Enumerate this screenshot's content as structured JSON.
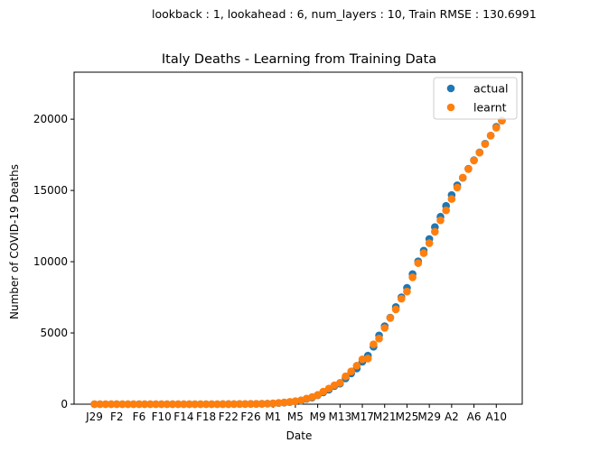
{
  "suptitle": "lookback : 1, lookahead : 6, num_layers : 10, Train RMSE : 130.6991",
  "chart_data": {
    "type": "scatter",
    "title": "Italy Deaths - Learning from Training Data",
    "xlabel": "Date",
    "ylabel": "Number of COVID-19 Deaths",
    "ylim": [
      0,
      23300
    ],
    "yticks": [
      0,
      5000,
      10000,
      15000,
      20000
    ],
    "xtick_labels": [
      "J29",
      "F2",
      "F6",
      "F10",
      "F14",
      "F18",
      "F22",
      "F26",
      "M1",
      "M5",
      "M9",
      "M13",
      "M17",
      "M21",
      "M25",
      "M29",
      "A2",
      "A6",
      "A10"
    ],
    "x_days_from_J29": [
      0,
      1,
      2,
      3,
      4,
      5,
      6,
      7,
      8,
      9,
      10,
      11,
      12,
      13,
      14,
      15,
      16,
      17,
      18,
      19,
      20,
      21,
      22,
      23,
      24,
      25,
      26,
      27,
      28,
      29,
      30,
      31,
      32,
      33,
      34,
      35,
      36,
      37,
      38,
      39,
      40,
      41,
      42,
      43,
      44,
      45,
      46,
      47,
      48,
      49,
      50,
      51,
      52,
      53,
      54,
      55,
      56,
      57,
      58,
      59,
      60,
      61,
      62,
      63,
      64,
      65,
      66,
      67,
      68,
      69,
      70,
      71,
      72,
      73
    ],
    "legend": {
      "position": "top-right",
      "entries": [
        "actual",
        "learnt"
      ]
    },
    "series": [
      {
        "name": "actual",
        "color": "#1f77b4",
        "values": [
          0,
          0,
          0,
          0,
          0,
          0,
          0,
          0,
          0,
          0,
          0,
          0,
          0,
          0,
          0,
          0,
          0,
          0,
          0,
          0,
          0,
          0,
          0,
          1,
          3,
          7,
          10,
          12,
          17,
          21,
          29,
          34,
          52,
          79,
          107,
          148,
          197,
          233,
          366,
          463,
          631,
          827,
          1016,
          1266,
          1441,
          1809,
          2158,
          2503,
          2978,
          3405,
          4032,
          4825,
          5476,
          6077,
          6820,
          7503,
          8165,
          9134,
          10023,
          10779,
          11591,
          12428,
          13155,
          13915,
          14681,
          15362,
          15887,
          16523,
          17127,
          17669,
          18279,
          18849,
          19468,
          19899
        ]
      },
      {
        "name": "learnt",
        "color": "#ff7f0e",
        "values": [
          0,
          0,
          0,
          0,
          0,
          0,
          0,
          0,
          0,
          0,
          0,
          0,
          0,
          0,
          0,
          0,
          0,
          0,
          0,
          0,
          0,
          0,
          0,
          2,
          4,
          8,
          11,
          14,
          18,
          22,
          30,
          40,
          60,
          90,
          120,
          160,
          210,
          270,
          390,
          500,
          650,
          880,
          1100,
          1330,
          1500,
          1950,
          2300,
          2700,
          3150,
          3200,
          4200,
          4600,
          5350,
          6050,
          6650,
          7400,
          7900,
          8900,
          9900,
          10600,
          11300,
          12100,
          12900,
          13600,
          14400,
          15200,
          15900,
          16500,
          17100,
          17650,
          18250,
          18850,
          19400,
          19900
        ]
      }
    ]
  }
}
